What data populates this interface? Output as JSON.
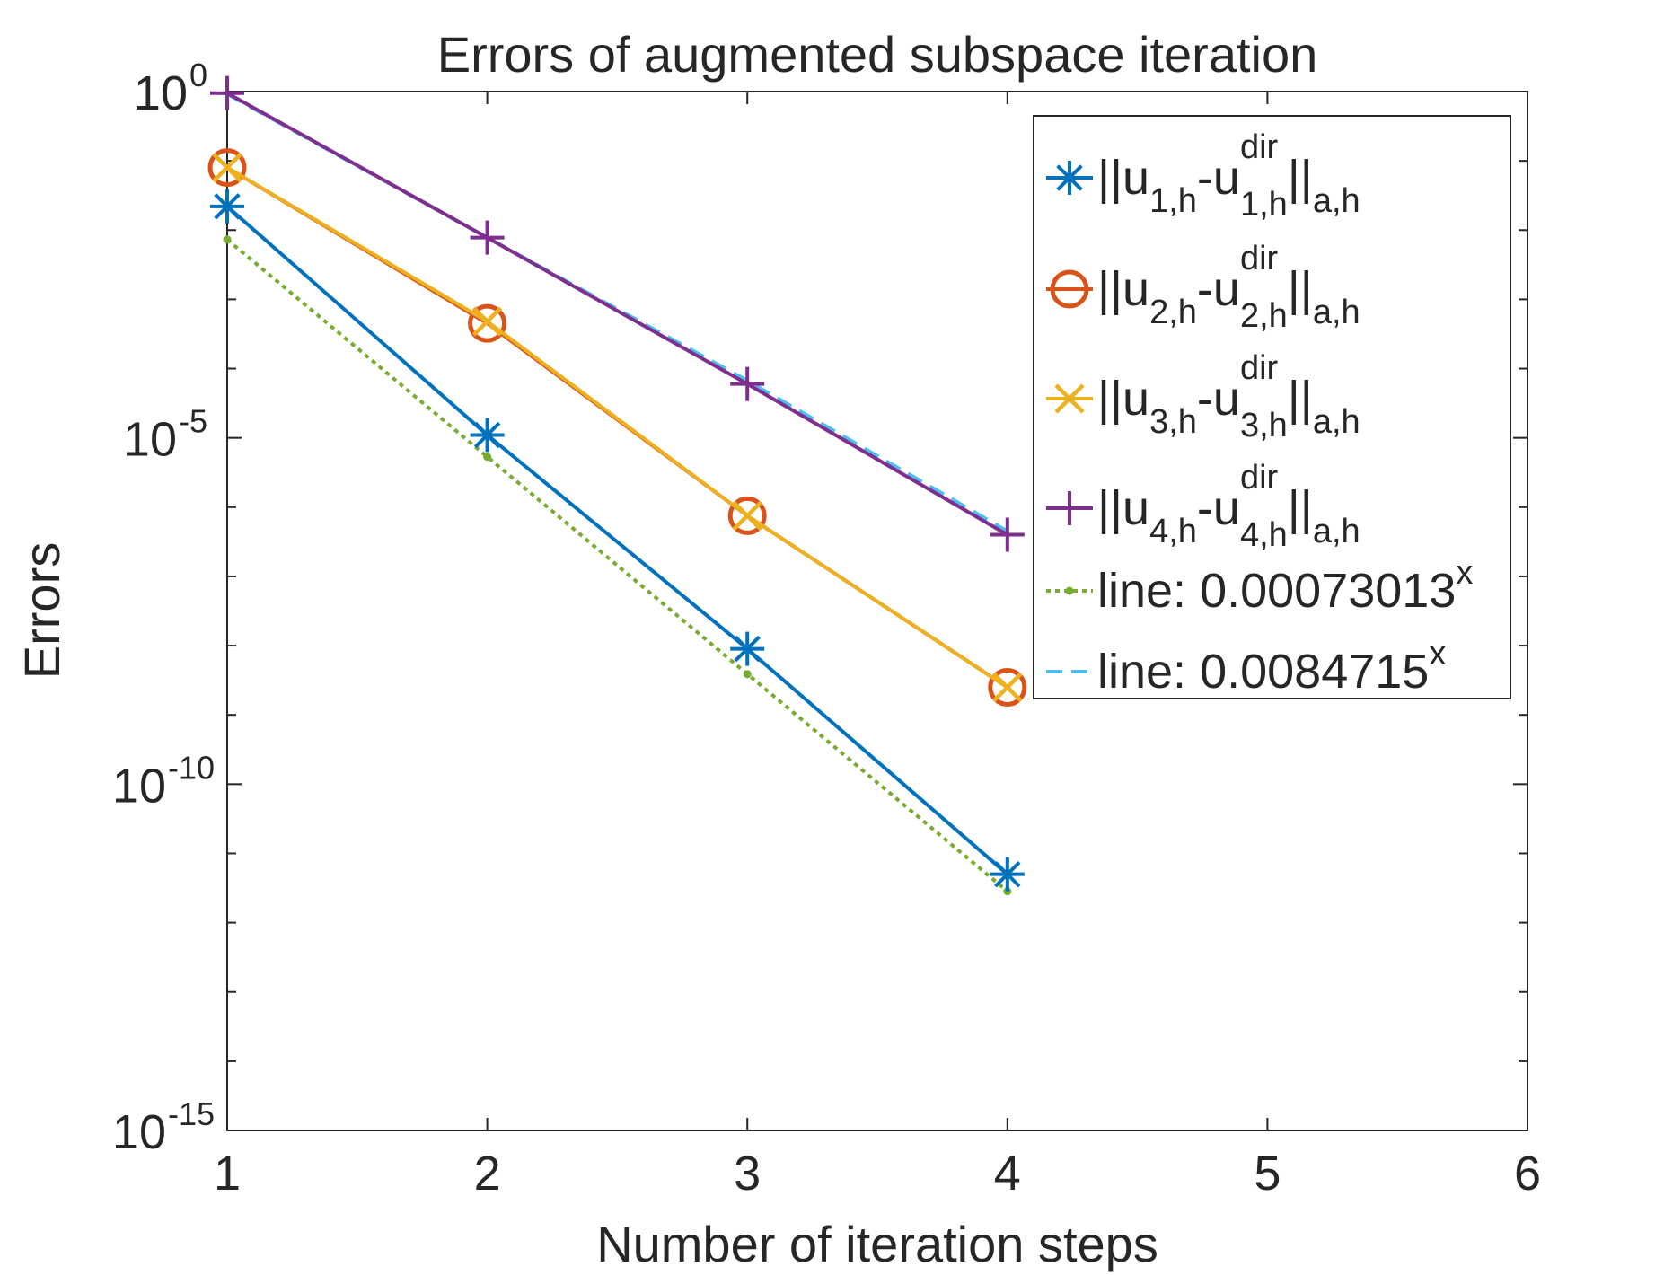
{
  "chart_data": {
    "type": "line",
    "title": "Errors of augmented subspace iteration",
    "xlabel": "Number of iteration steps",
    "ylabel": "Errors",
    "xscale": "linear",
    "yscale": "log",
    "xlim": [
      1,
      6
    ],
    "ylim": [
      1e-15,
      1
    ],
    "xticks": [
      "1",
      "2",
      "3",
      "4",
      "5",
      "6"
    ],
    "yticks": [
      {
        "value": 1,
        "base": "10",
        "exp": "0"
      },
      {
        "value": 1e-05,
        "base": "10",
        "exp": "-5"
      },
      {
        "value": 1e-10,
        "base": "10",
        "exp": "-10"
      },
      {
        "value": 1e-15,
        "base": "10",
        "exp": "-15"
      }
    ],
    "legend_position": "top-right",
    "series": [
      {
        "name": "||u1,h-u1,h^dir||a,h",
        "legend": {
          "pre": "||u",
          "sub1": "1,h",
          "mid": "-u",
          "sup": "dir",
          "sub2": "1,h",
          "post": "||",
          "sub3": "a,h"
        },
        "color": "#0072BD",
        "marker": "asterisk",
        "dash": "solid",
        "x": [
          1,
          2,
          3,
          4
        ],
        "y": [
          0.022,
          1.1e-05,
          9e-09,
          5e-12
        ]
      },
      {
        "name": "||u2,h-u2,h^dir||a,h",
        "legend": {
          "pre": "||u",
          "sub1": "2,h",
          "mid": "-u",
          "sup": "dir",
          "sub2": "2,h",
          "post": "||",
          "sub3": "a,h"
        },
        "color": "#D95319",
        "marker": "circle",
        "dash": "solid",
        "x": [
          1,
          2,
          3,
          4
        ],
        "y": [
          0.08,
          0.00045,
          7.5e-07,
          2.5e-09
        ]
      },
      {
        "name": "||u3,h-u3,h^dir||a,h",
        "legend": {
          "pre": "||u",
          "sub1": "3,h",
          "mid": "-u",
          "sup": "dir",
          "sub2": "3,h",
          "post": "||",
          "sub3": "a,h"
        },
        "color": "#EDB120",
        "marker": "x",
        "dash": "solid",
        "x": [
          1,
          2,
          3,
          4
        ],
        "y": [
          0.08,
          0.00048,
          7.5e-07,
          2.5e-09
        ]
      },
      {
        "name": "||u4,h-u4,h^dir||a,h",
        "legend": {
          "pre": "||u",
          "sub1": "4,h",
          "mid": "-u",
          "sup": "dir",
          "sub2": "4,h",
          "post": "||",
          "sub3": "a,h"
        },
        "color": "#7E2F8E",
        "marker": "plus",
        "dash": "solid",
        "x": [
          1,
          2,
          3,
          4
        ],
        "y": [
          0.95,
          0.0078,
          6e-05,
          4e-07
        ]
      },
      {
        "name": "line: 0.00073013^x",
        "legend": {
          "text": "line: 0.00073013",
          "sup": "x"
        },
        "color": "#77AC30",
        "marker": "dot",
        "dash": "dotted",
        "x": [
          1,
          2,
          3,
          4
        ],
        "y": [
          0.0073,
          5.33e-06,
          3.89e-09,
          2.84e-12
        ],
        "note_base": 0.00073013
      },
      {
        "name": "line: 0.0084715^x",
        "legend": {
          "text": "line: 0.0084715",
          "sup": "x"
        },
        "color": "#4DBEEE",
        "marker": "none",
        "dash": "dashed",
        "x": [
          1,
          2,
          3,
          4
        ],
        "y": [
          0.92,
          0.0078,
          6.7e-05,
          4.5e-07
        ]
      }
    ]
  }
}
